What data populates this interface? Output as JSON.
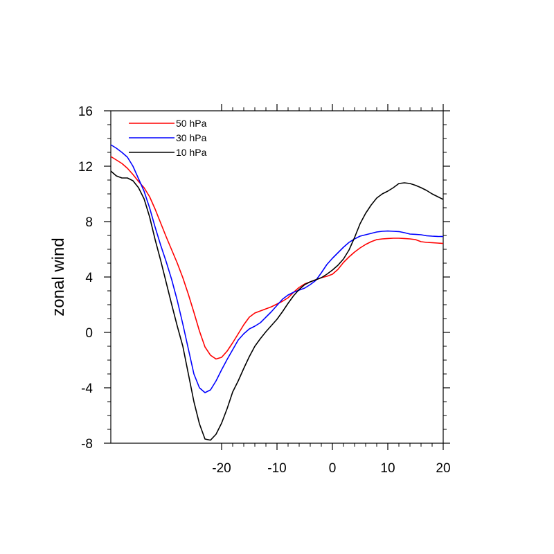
{
  "chart_data": {
    "type": "line",
    "title": "",
    "xlabel": "",
    "ylabel": "zonal wind",
    "xlim": [
      -40,
      20
    ],
    "ylim": [
      -8,
      16
    ],
    "xticks": [
      -20,
      -10,
      0,
      10,
      20
    ],
    "xtick_labels": [
      "-20",
      "-10",
      "0",
      "10",
      "20"
    ],
    "yticks": [
      -8,
      -4,
      0,
      4,
      8,
      12,
      16
    ],
    "ytick_labels": [
      "-8",
      "-4",
      "0",
      "4",
      "8",
      "12",
      "16"
    ],
    "grid": false,
    "legend": {
      "placement": "top-left",
      "entries": [
        "50 hPa",
        "30 hPa",
        "10 hPa"
      ]
    },
    "series": [
      {
        "name": "50 hPa",
        "color": "#ff0000",
        "points": [
          [
            -40,
            12.7
          ],
          [
            -39,
            12.45
          ],
          [
            -38,
            12.2
          ],
          [
            -37,
            11.85
          ],
          [
            -36,
            11.4
          ],
          [
            -35,
            10.9
          ],
          [
            -34,
            10.45
          ],
          [
            -33,
            9.8
          ],
          [
            -32,
            8.9
          ],
          [
            -31,
            7.9
          ],
          [
            -30,
            6.9
          ],
          [
            -29,
            5.95
          ],
          [
            -28,
            5.0
          ],
          [
            -27,
            3.95
          ],
          [
            -26,
            2.75
          ],
          [
            -25,
            1.45
          ],
          [
            -24,
            0.1
          ],
          [
            -23,
            -1.05
          ],
          [
            -22,
            -1.65
          ],
          [
            -21,
            -1.92
          ],
          [
            -20,
            -1.8
          ],
          [
            -19,
            -1.35
          ],
          [
            -18,
            -0.75
          ],
          [
            -17,
            -0.1
          ],
          [
            -16,
            0.55
          ],
          [
            -15,
            1.1
          ],
          [
            -14,
            1.4
          ],
          [
            -13,
            1.55
          ],
          [
            -12,
            1.7
          ],
          [
            -11,
            1.85
          ],
          [
            -10,
            2.05
          ],
          [
            -9,
            2.25
          ],
          [
            -8,
            2.5
          ],
          [
            -7,
            2.9
          ],
          [
            -6,
            3.25
          ],
          [
            -5,
            3.5
          ],
          [
            -4,
            3.65
          ],
          [
            -3,
            3.8
          ],
          [
            -2,
            3.95
          ],
          [
            -1,
            4.05
          ],
          [
            0,
            4.2
          ],
          [
            1,
            4.55
          ],
          [
            2,
            5.05
          ],
          [
            3,
            5.45
          ],
          [
            4,
            5.8
          ],
          [
            5,
            6.1
          ],
          [
            6,
            6.35
          ],
          [
            7,
            6.55
          ],
          [
            8,
            6.7
          ],
          [
            9,
            6.75
          ],
          [
            10,
            6.78
          ],
          [
            11,
            6.8
          ],
          [
            12,
            6.8
          ],
          [
            13,
            6.78
          ],
          [
            14,
            6.75
          ],
          [
            15,
            6.7
          ],
          [
            16,
            6.55
          ],
          [
            17,
            6.5
          ],
          [
            18,
            6.48
          ],
          [
            19,
            6.45
          ],
          [
            20,
            6.42
          ]
        ]
      },
      {
        "name": "30 hPa",
        "color": "#0000ff",
        "points": [
          [
            -40,
            13.55
          ],
          [
            -39,
            13.3
          ],
          [
            -38,
            13.0
          ],
          [
            -37,
            12.65
          ],
          [
            -36,
            12.0
          ],
          [
            -35,
            11.1
          ],
          [
            -34,
            10.2
          ],
          [
            -33,
            9.0
          ],
          [
            -32,
            7.6
          ],
          [
            -31,
            6.3
          ],
          [
            -30,
            5.1
          ],
          [
            -29,
            3.8
          ],
          [
            -28,
            2.3
          ],
          [
            -27,
            0.6
          ],
          [
            -26,
            -1.2
          ],
          [
            -25,
            -3.0
          ],
          [
            -24,
            -4.0
          ],
          [
            -23,
            -4.35
          ],
          [
            -22,
            -4.15
          ],
          [
            -21,
            -3.5
          ],
          [
            -20,
            -2.7
          ],
          [
            -19,
            -1.95
          ],
          [
            -18,
            -1.25
          ],
          [
            -17,
            -0.55
          ],
          [
            -16,
            -0.1
          ],
          [
            -15,
            0.25
          ],
          [
            -14,
            0.45
          ],
          [
            -13,
            0.7
          ],
          [
            -12,
            1.1
          ],
          [
            -11,
            1.5
          ],
          [
            -10,
            1.95
          ],
          [
            -9,
            2.4
          ],
          [
            -8,
            2.7
          ],
          [
            -7,
            2.9
          ],
          [
            -6,
            3.05
          ],
          [
            -5,
            3.2
          ],
          [
            -4,
            3.45
          ],
          [
            -3,
            3.75
          ],
          [
            -2,
            4.3
          ],
          [
            -1,
            4.9
          ],
          [
            0,
            5.35
          ],
          [
            1,
            5.75
          ],
          [
            2,
            6.15
          ],
          [
            3,
            6.5
          ],
          [
            4,
            6.75
          ],
          [
            5,
            6.95
          ],
          [
            6,
            7.05
          ],
          [
            7,
            7.15
          ],
          [
            8,
            7.25
          ],
          [
            9,
            7.3
          ],
          [
            10,
            7.32
          ],
          [
            11,
            7.3
          ],
          [
            12,
            7.28
          ],
          [
            13,
            7.2
          ],
          [
            14,
            7.1
          ],
          [
            15,
            7.08
          ],
          [
            16,
            7.05
          ],
          [
            17,
            6.98
          ],
          [
            18,
            6.95
          ],
          [
            19,
            6.93
          ],
          [
            20,
            6.92
          ]
        ]
      },
      {
        "name": "10 hPa",
        "color": "#000000",
        "points": [
          [
            -40,
            11.65
          ],
          [
            -39,
            11.3
          ],
          [
            -38,
            11.15
          ],
          [
            -37,
            11.15
          ],
          [
            -36,
            10.95
          ],
          [
            -35,
            10.45
          ],
          [
            -34,
            9.65
          ],
          [
            -33,
            8.35
          ],
          [
            -32,
            6.7
          ],
          [
            -31,
            5.2
          ],
          [
            -30,
            3.6
          ],
          [
            -29,
            2.0
          ],
          [
            -28,
            0.45
          ],
          [
            -27,
            -1.0
          ],
          [
            -26,
            -3.0
          ],
          [
            -25,
            -5.0
          ],
          [
            -24,
            -6.6
          ],
          [
            -23,
            -7.7
          ],
          [
            -22,
            -7.78
          ],
          [
            -21,
            -7.35
          ],
          [
            -20,
            -6.55
          ],
          [
            -19,
            -5.5
          ],
          [
            -18,
            -4.3
          ],
          [
            -17,
            -3.5
          ],
          [
            -16,
            -2.6
          ],
          [
            -15,
            -1.75
          ],
          [
            -14,
            -1.0
          ],
          [
            -13,
            -0.45
          ],
          [
            -12,
            0.05
          ],
          [
            -11,
            0.5
          ],
          [
            -10,
            0.95
          ],
          [
            -9,
            1.5
          ],
          [
            -8,
            2.1
          ],
          [
            -7,
            2.65
          ],
          [
            -6,
            3.1
          ],
          [
            -5,
            3.45
          ],
          [
            -4,
            3.65
          ],
          [
            -3,
            3.8
          ],
          [
            -2,
            3.95
          ],
          [
            -1,
            4.2
          ],
          [
            0,
            4.5
          ],
          [
            1,
            4.85
          ],
          [
            2,
            5.3
          ],
          [
            3,
            5.95
          ],
          [
            4,
            6.85
          ],
          [
            5,
            7.85
          ],
          [
            6,
            8.6
          ],
          [
            7,
            9.2
          ],
          [
            8,
            9.7
          ],
          [
            9,
            10.0
          ],
          [
            10,
            10.2
          ],
          [
            11,
            10.45
          ],
          [
            12,
            10.75
          ],
          [
            13,
            10.8
          ],
          [
            14,
            10.75
          ],
          [
            15,
            10.62
          ],
          [
            16,
            10.45
          ],
          [
            17,
            10.25
          ],
          [
            18,
            10.0
          ],
          [
            19,
            9.8
          ],
          [
            20,
            9.6
          ]
        ]
      }
    ]
  }
}
